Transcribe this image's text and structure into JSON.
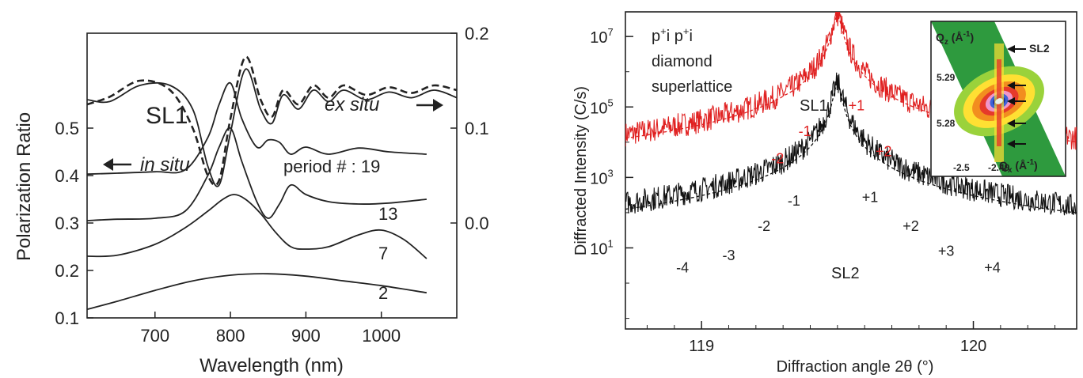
{
  "chart_data": [
    {
      "type": "line",
      "panel": "left",
      "xlabel": "Wavelength  (nm)",
      "ylabel": "Polarization Ratio",
      "xlim": [
        610,
        1100
      ],
      "x_ticks": [
        700,
        800,
        900,
        1000
      ],
      "ylim_left": [
        0.1,
        0.7
      ],
      "y_ticks_left": [
        0.1,
        0.2,
        0.3,
        0.4,
        0.5
      ],
      "ylim_right": [
        -0.1,
        0.2
      ],
      "y_ticks_right": [
        0.0,
        0.1,
        0.2
      ],
      "annotations": {
        "sl1": "SL1",
        "ex_situ": "ex situ",
        "in_situ": "in situ",
        "period_label": "period # : 19",
        "p13": "13",
        "p7": "7",
        "p2": "2"
      },
      "series": [
        {
          "name": "19",
          "axis": "left",
          "style": "solid",
          "color": "#222222",
          "x": [
            610,
            650,
            700,
            740,
            770,
            785,
            800,
            815,
            835,
            850,
            865,
            880,
            900,
            930,
            970,
            1010,
            1060
          ],
          "y": [
            0.403,
            0.405,
            0.408,
            0.412,
            0.48,
            0.55,
            0.595,
            0.52,
            0.46,
            0.475,
            0.47,
            0.445,
            0.46,
            0.445,
            0.458,
            0.45,
            0.445
          ]
        },
        {
          "name": "13",
          "axis": "left",
          "style": "solid",
          "color": "#222222",
          "x": [
            610,
            650,
            700,
            740,
            770,
            785,
            800,
            815,
            835,
            850,
            865,
            880,
            900,
            930,
            970,
            1010,
            1060
          ],
          "y": [
            0.305,
            0.308,
            0.31,
            0.325,
            0.4,
            0.46,
            0.5,
            0.43,
            0.345,
            0.31,
            0.34,
            0.38,
            0.36,
            0.345,
            0.34,
            0.342,
            0.35
          ]
        },
        {
          "name": "7",
          "axis": "left",
          "style": "solid",
          "color": "#222222",
          "x": [
            610,
            650,
            700,
            740,
            770,
            790,
            805,
            820,
            840,
            860,
            880,
            900,
            930,
            970,
            1000,
            1030,
            1060
          ],
          "y": [
            0.23,
            0.232,
            0.255,
            0.29,
            0.325,
            0.35,
            0.36,
            0.35,
            0.32,
            0.28,
            0.25,
            0.245,
            0.25,
            0.275,
            0.285,
            0.265,
            0.225
          ]
        },
        {
          "name": "2",
          "axis": "left",
          "style": "solid",
          "color": "#222222",
          "x": [
            610,
            650,
            700,
            750,
            800,
            850,
            900,
            950,
            1000,
            1060
          ],
          "y": [
            0.118,
            0.135,
            0.158,
            0.178,
            0.19,
            0.193,
            0.188,
            0.178,
            0.168,
            0.153
          ]
        },
        {
          "name": "ex situ (measured)",
          "axis": "right",
          "style": "solid",
          "color": "#222222",
          "x": [
            610,
            640,
            680,
            720,
            750,
            770,
            785,
            800,
            820,
            840,
            855,
            870,
            890,
            910,
            930,
            950,
            980,
            1010,
            1040,
            1070,
            1100
          ],
          "y": [
            0.13,
            0.128,
            0.145,
            0.145,
            0.12,
            0.06,
            0.04,
            0.095,
            0.162,
            0.12,
            0.105,
            0.135,
            0.12,
            0.14,
            0.128,
            0.14,
            0.13,
            0.138,
            0.132,
            0.14,
            0.132
          ]
        },
        {
          "name": "ex situ (fit)",
          "axis": "right",
          "style": "dashed",
          "color": "#222222",
          "x": [
            610,
            640,
            680,
            720,
            750,
            770,
            785,
            800,
            820,
            840,
            855,
            870,
            890,
            910,
            930,
            950,
            980,
            1010,
            1040,
            1070,
            1100
          ],
          "y": [
            0.125,
            0.133,
            0.15,
            0.14,
            0.1,
            0.05,
            0.045,
            0.11,
            0.175,
            0.13,
            0.112,
            0.14,
            0.125,
            0.145,
            0.132,
            0.145,
            0.135,
            0.143,
            0.137,
            0.145,
            0.14
          ]
        }
      ]
    },
    {
      "type": "line",
      "panel": "right",
      "xlabel": "Diffraction angle 2θ  (°)",
      "ylabel": "Diffracted Intensity (C/s)",
      "xlim": [
        118.72,
        120.38
      ],
      "x_ticks": [
        119,
        120
      ],
      "y_scale": "log",
      "ylim": [
        0.05,
        50000000.0
      ],
      "y_ticks": [
        10,
        1000,
        100000,
        10000000
      ],
      "y_tick_labels": [
        {
          "base": "10",
          "exp": "1"
        },
        {
          "base": "10",
          "exp": "3"
        },
        {
          "base": "10",
          "exp": "5"
        },
        {
          "base": "10",
          "exp": "7"
        }
      ],
      "sample_label_lines": [
        {
          "a": "p",
          "a_sup": "+",
          "b": "i p",
          "b_sup": "+",
          "c": "i"
        },
        "diamond",
        "superlattice"
      ],
      "labels": {
        "sl1": "SL1",
        "sl2": "SL2"
      },
      "peak_labels": [
        {
          "text": "-2",
          "x": 119.28,
          "y": 2500,
          "color": "#e02020"
        },
        {
          "text": "-1",
          "x": 119.38,
          "y": 15000,
          "color": "#e02020"
        },
        {
          "text": "+1",
          "x": 119.57,
          "y": 80000,
          "color": "#e02020"
        },
        {
          "text": "+2",
          "x": 119.67,
          "y": 4000,
          "color": "#e02020"
        },
        {
          "text": "-4",
          "x": 118.93,
          "y": 2,
          "color": "#222222"
        },
        {
          "text": "-3",
          "x": 119.1,
          "y": 4.5,
          "color": "#222222"
        },
        {
          "text": "-2",
          "x": 119.23,
          "y": 30,
          "color": "#222222"
        },
        {
          "text": "-1",
          "x": 119.34,
          "y": 160,
          "color": "#222222"
        },
        {
          "text": "+1",
          "x": 119.62,
          "y": 200,
          "color": "#222222"
        },
        {
          "text": "+2",
          "x": 119.77,
          "y": 30,
          "color": "#222222"
        },
        {
          "text": "+3",
          "x": 119.9,
          "y": 6,
          "color": "#222222"
        },
        {
          "text": "+4",
          "x": 120.07,
          "y": 2,
          "color": "#222222"
        }
      ],
      "series": [
        {
          "name": "SL1 measured",
          "color": "#e02020",
          "style": "solid",
          "base": 30,
          "peak": 40000000,
          "hw": 0.016,
          "satellites": [
            [
              119.39,
              3000
            ],
            [
              119.335,
              200
            ],
            [
              119.58,
              1500
            ],
            [
              119.68,
              300
            ]
          ]
        },
        {
          "name": "SL1 simulated",
          "color": "#e02020",
          "style": "dashed",
          "base": 70,
          "peak": 40000000,
          "hw": 0.014,
          "satellites": [
            [
              119.395,
              25000
            ],
            [
              119.305,
              8000
            ],
            [
              119.2,
              3000
            ],
            [
              119.11,
              600
            ],
            [
              118.98,
              150
            ],
            [
              119.58,
              20000
            ],
            [
              119.69,
              1500
            ],
            [
              119.79,
              300
            ]
          ]
        },
        {
          "name": "SL2 measured",
          "color": "#111111",
          "style": "solid",
          "base": 0.4,
          "peak": 450000,
          "hw": 0.016,
          "satellites": [
            [
              119.36,
              80
            ],
            [
              119.61,
              60
            ],
            [
              119.245,
              8
            ],
            [
              119.75,
              8
            ],
            [
              119.13,
              2
            ],
            [
              119.88,
              2
            ],
            [
              118.99,
              0.8
            ],
            [
              120.03,
              0.8
            ]
          ]
        },
        {
          "name": "SL2 simulated",
          "color": "#111111",
          "style": "dashed",
          "base": 0.6,
          "peak": 450000,
          "hw": 0.013,
          "satellites": [
            [
              119.36,
              30
            ],
            [
              119.61,
              25
            ],
            [
              119.245,
              4
            ],
            [
              119.75,
              4
            ],
            [
              119.13,
              1
            ]
          ]
        }
      ],
      "inset": {
        "type": "heatmap",
        "ylabel": {
          "q": "Q",
          "sub": "z",
          "unit": " (Å",
          "exp": "-1",
          "close": ")"
        },
        "xlabel": {
          "q": "Q",
          "sub": "x",
          "unit": " (Å",
          "exp": "-1",
          "close": ")"
        },
        "y_ticks": [
          "5.29",
          "5.28"
        ],
        "x_ticks": [
          "-2.5",
          "-2.49"
        ],
        "label": "SL2",
        "arrow_count": 5,
        "colors": [
          "#2e9a3e",
          "#9ad23b",
          "#ffe033",
          "#f28e1f",
          "#e63a2a",
          "#f096c8",
          "#3d63d6",
          "#1a2a9a",
          "#e4f2ea"
        ]
      }
    }
  ]
}
